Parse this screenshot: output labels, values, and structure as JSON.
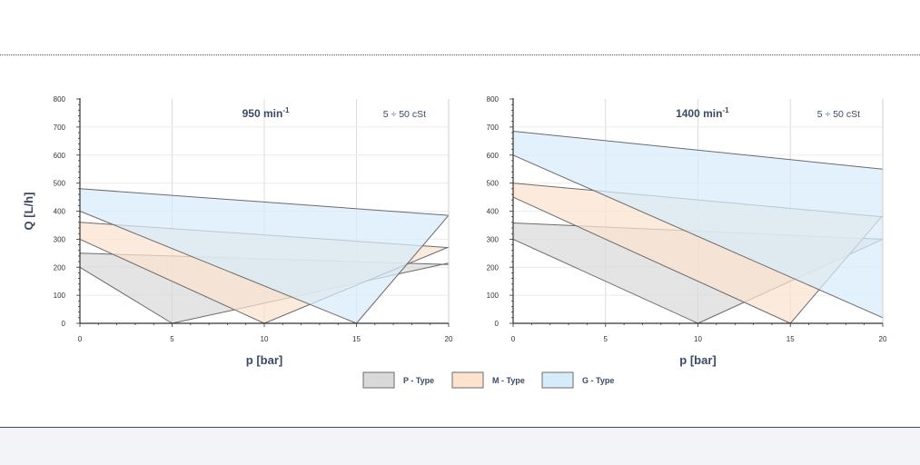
{
  "colors": {
    "p_type": "#d9d9d9",
    "m_type": "#fbe3cf",
    "g_type": "#d7ecfb",
    "stroke": "#6b6b6b",
    "axis_text": "#3a4a66",
    "footer_accent": "#e3572b"
  },
  "footer": {
    "text": ""
  },
  "chart_data": [
    {
      "type": "area",
      "title": "950 min",
      "title_sup": "-1",
      "annotation": "5 ÷ 50 cSt",
      "xlabel": "p [bar]",
      "ylabel": "Q [L/h]",
      "xlim": [
        0,
        20
      ],
      "ylim": [
        0,
        800
      ],
      "xticks": [
        "0",
        "5",
        "10",
        "15",
        "20"
      ],
      "yticks": [
        "0",
        "100",
        "200",
        "300",
        "400",
        "500",
        "600",
        "700",
        "800"
      ],
      "grid": true,
      "series": [
        {
          "name": "P - Type",
          "polygon": [
            [
              0,
              250
            ],
            [
              20,
              210
            ],
            [
              20,
              215
            ],
            [
              5,
              0
            ],
            [
              0,
              200
            ]
          ]
        },
        {
          "name": "M - Type",
          "polygon": [
            [
              0,
              360
            ],
            [
              20,
              270
            ],
            [
              20,
              272
            ],
            [
              10,
              0
            ],
            [
              0,
              300
            ]
          ]
        },
        {
          "name": "G - Type",
          "polygon": [
            [
              0,
              480
            ],
            [
              20,
              385
            ],
            [
              20,
              385
            ],
            [
              15,
              0
            ],
            [
              0,
              400
            ]
          ]
        }
      ]
    },
    {
      "type": "area",
      "title": "1400 min",
      "title_sup": "-1",
      "annotation": "5 ÷ 50 cSt",
      "xlabel": "p [bar]",
      "ylabel": "",
      "xlim": [
        0,
        20
      ],
      "ylim": [
        0,
        800
      ],
      "xticks": [
        "0",
        "5",
        "10",
        "15",
        "20"
      ],
      "yticks": [
        "0",
        "100",
        "200",
        "300",
        "400",
        "500",
        "600",
        "700",
        "800"
      ],
      "grid": true,
      "series": [
        {
          "name": "P - Type",
          "polygon": [
            [
              0,
              358
            ],
            [
              20,
              300
            ],
            [
              20,
              300
            ],
            [
              10,
              0
            ],
            [
              0,
              300
            ]
          ]
        },
        {
          "name": "M - Type",
          "polygon": [
            [
              0,
              500
            ],
            [
              20,
              380
            ],
            [
              20,
              385
            ],
            [
              15,
              0
            ],
            [
              0,
              450
            ]
          ]
        },
        {
          "name": "G - Type",
          "polygon": [
            [
              0,
              685
            ],
            [
              20,
              550
            ],
            [
              20,
              20
            ],
            [
              0,
              600
            ]
          ]
        }
      ]
    }
  ],
  "legend": {
    "items": [
      {
        "label": "P - Type",
        "color": "#d9d9d9"
      },
      {
        "label": "M - Type",
        "color": "#fbe3cf"
      },
      {
        "label": "G - Type",
        "color": "#d7ecfb"
      }
    ]
  }
}
